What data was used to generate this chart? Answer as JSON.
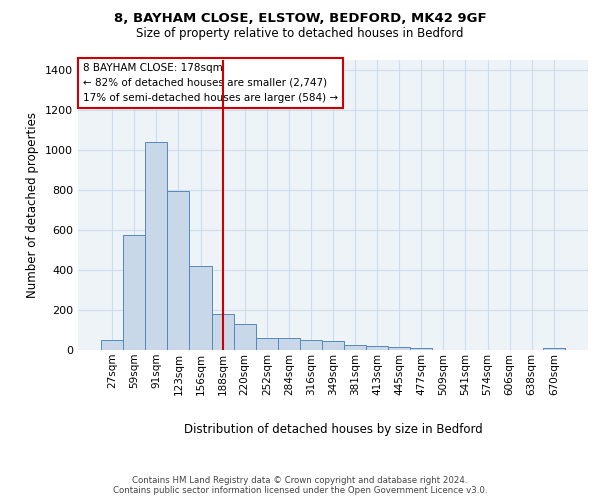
{
  "title1": "8, BAYHAM CLOSE, ELSTOW, BEDFORD, MK42 9GF",
  "title2": "Size of property relative to detached houses in Bedford",
  "xlabel": "Distribution of detached houses by size in Bedford",
  "ylabel": "Number of detached properties",
  "categories": [
    "27sqm",
    "59sqm",
    "91sqm",
    "123sqm",
    "156sqm",
    "188sqm",
    "220sqm",
    "252sqm",
    "284sqm",
    "316sqm",
    "349sqm",
    "381sqm",
    "413sqm",
    "445sqm",
    "477sqm",
    "509sqm",
    "541sqm",
    "574sqm",
    "606sqm",
    "638sqm",
    "670sqm"
  ],
  "values": [
    48,
    575,
    1040,
    793,
    420,
    182,
    128,
    62,
    60,
    48,
    47,
    25,
    22,
    15,
    10,
    0,
    0,
    0,
    0,
    0,
    10
  ],
  "bar_color": "#c8d8e8",
  "bar_edge_color": "#5588bb",
  "vline_x": 5,
  "vline_color": "#cc0000",
  "annotation_text": "8 BAYHAM CLOSE: 178sqm\n← 82% of detached houses are smaller (2,747)\n17% of semi-detached houses are larger (584) →",
  "annotation_box_color": "#ffffff",
  "annotation_box_edge": "#cc0000",
  "ylim": [
    0,
    1450
  ],
  "yticks": [
    0,
    200,
    400,
    600,
    800,
    1000,
    1200,
    1400
  ],
  "grid_color": "#ccddee",
  "bg_color": "#eef3f8",
  "footer": "Contains HM Land Registry data © Crown copyright and database right 2024.\nContains public sector information licensed under the Open Government Licence v3.0."
}
